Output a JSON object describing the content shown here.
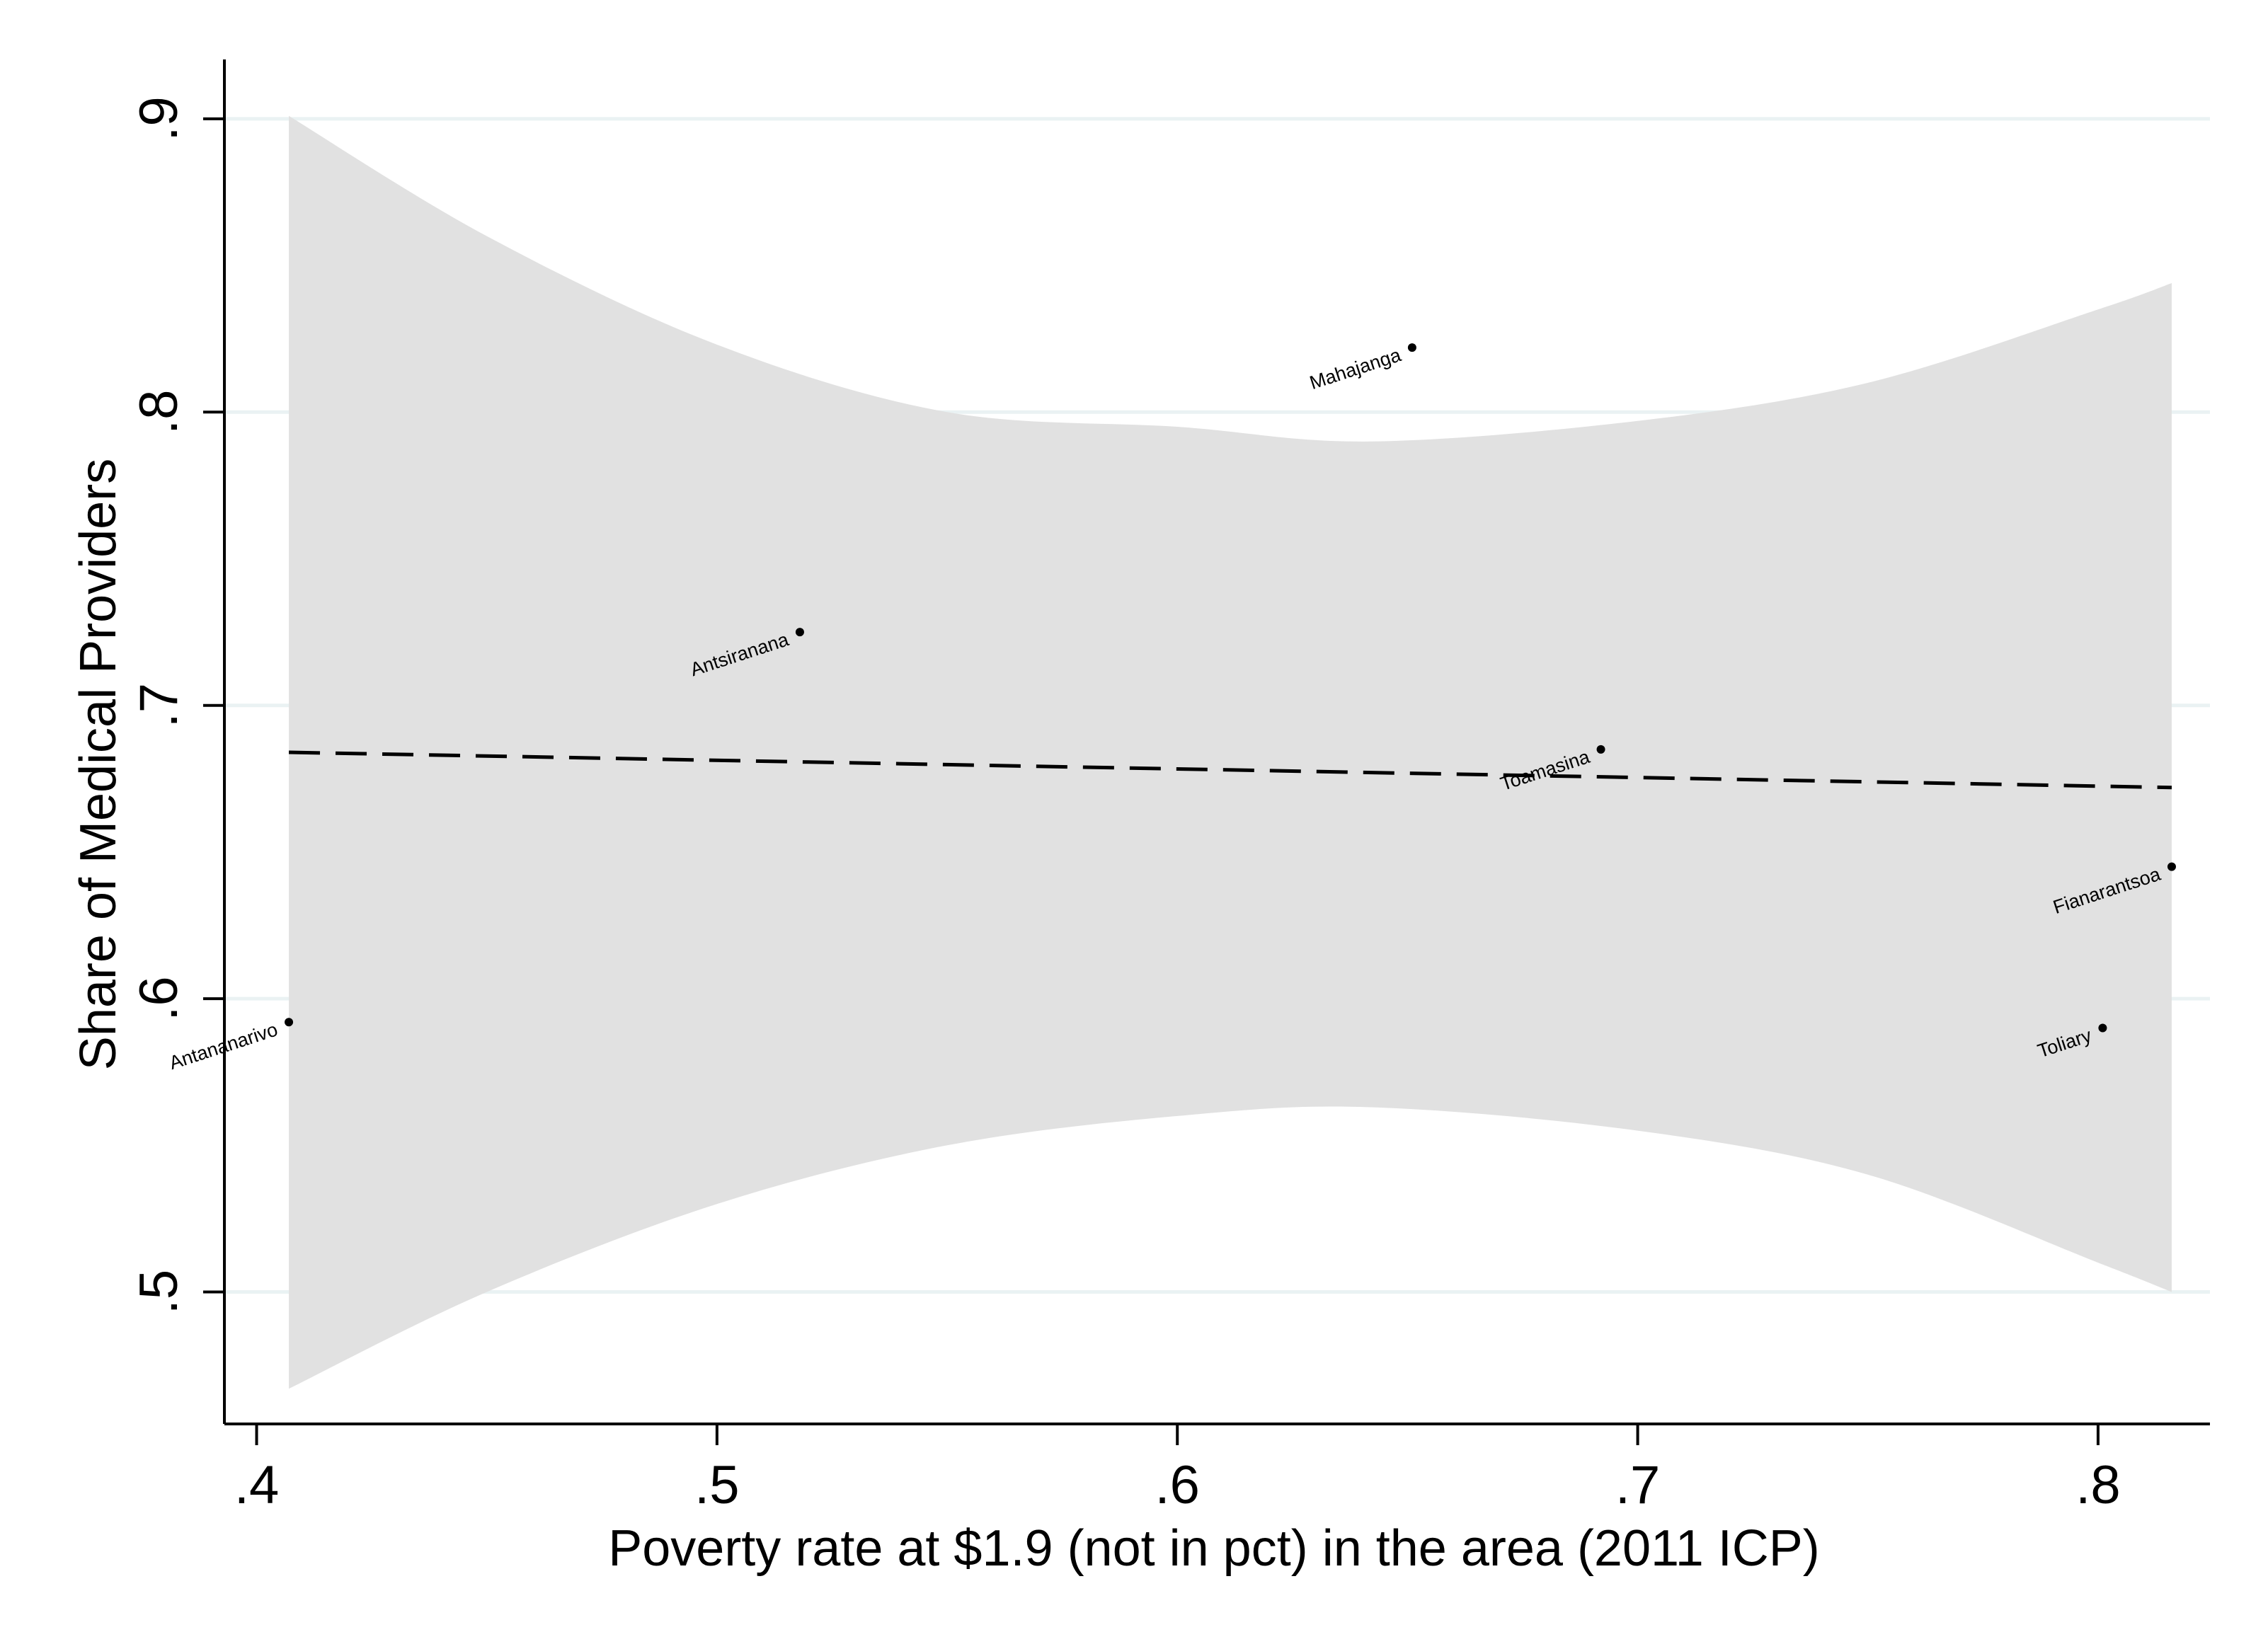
{
  "chart_data": {
    "type": "scatter",
    "title": "",
    "xlabel": "Poverty rate at $1.9 (not in pct) in the area (2011 ICP)",
    "ylabel": "Share of Medical Providers",
    "xlim": [
      0.393,
      0.824
    ],
    "ylim": [
      0.455,
      0.92
    ],
    "x_ticks": [
      {
        "value": 0.4,
        "label": ".4"
      },
      {
        "value": 0.5,
        "label": ".5"
      },
      {
        "value": 0.6,
        "label": ".6"
      },
      {
        "value": 0.7,
        "label": ".7"
      },
      {
        "value": 0.8,
        "label": ".8"
      }
    ],
    "y_ticks": [
      {
        "value": 0.5,
        "label": ".5"
      },
      {
        "value": 0.6,
        "label": ".6"
      },
      {
        "value": 0.7,
        "label": ".7"
      },
      {
        "value": 0.8,
        "label": ".8"
      },
      {
        "value": 0.9,
        "label": ".9"
      }
    ],
    "grid": "horizontal",
    "points": [
      {
        "label": "Antananarivo",
        "x": 0.407,
        "y": 0.592
      },
      {
        "label": "Antsiranana",
        "x": 0.518,
        "y": 0.725
      },
      {
        "label": "Mahajanga",
        "x": 0.651,
        "y": 0.822
      },
      {
        "label": "Toamasina",
        "x": 0.692,
        "y": 0.685
      },
      {
        "label": "Fianarantsoa",
        "x": 0.816,
        "y": 0.645
      },
      {
        "label": "Toliary",
        "x": 0.801,
        "y": 0.59
      }
    ],
    "fit_line": {
      "style": "dashed",
      "x": [
        0.407,
        0.816
      ],
      "y": [
        0.684,
        0.672
      ]
    },
    "confidence_band": {
      "x": [
        0.407,
        0.45,
        0.5,
        0.55,
        0.6,
        0.642,
        0.7,
        0.75,
        0.8,
        0.816
      ],
      "upper": [
        0.901,
        0.86,
        0.823,
        0.8,
        0.795,
        0.79,
        0.797,
        0.81,
        0.835,
        0.844
      ],
      "lower": [
        0.467,
        0.5,
        0.53,
        0.55,
        0.56,
        0.563,
        0.555,
        0.54,
        0.51,
        0.5
      ]
    },
    "colors": {
      "band": "#e1e1e1",
      "grid": "#eaf2f3",
      "point": "#000000",
      "line": "#000000",
      "axis": "#000000"
    }
  }
}
